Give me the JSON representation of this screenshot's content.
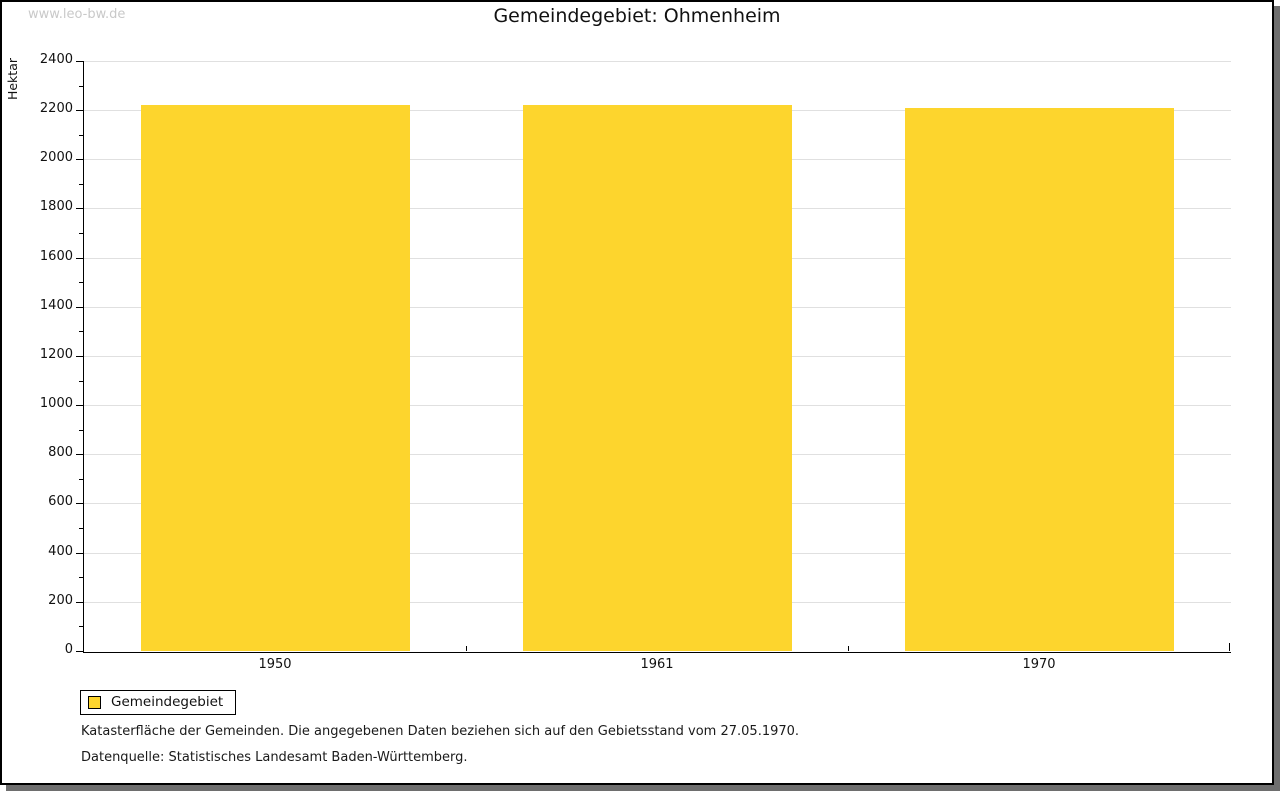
{
  "watermark": "www.leo-bw.de",
  "legend": {
    "label": "Gemeindegebiet"
  },
  "footnotes": [
    "Katasterfläche der Gemeinden. Die angegebenen Daten beziehen sich auf den Gebietsstand vom 27.05.1970.",
    "Datenquelle: Statistisches Landesamt Baden-Württemberg."
  ],
  "colors": {
    "bar": "#fdd52d",
    "grid": "#e0e0e0",
    "axis": "#000000",
    "watermark": "#c9c9c9",
    "panel_border": "#000000",
    "shadow": "#6e6e6e"
  },
  "chart_data": {
    "type": "bar",
    "title": "Gemeindegebiet: Ohmenheim",
    "categories": [
      "1950",
      "1961",
      "1970"
    ],
    "values": [
      2220,
      2220,
      2210
    ],
    "series_name": "Gemeindegebiet",
    "xlabel": "",
    "ylabel": "Hektar",
    "ylim": [
      0,
      2400
    ],
    "ytick_step": 200,
    "yminor_step": 100,
    "grid": true,
    "legend_position": "bottom-left",
    "bar_color": "#fdd52d"
  }
}
